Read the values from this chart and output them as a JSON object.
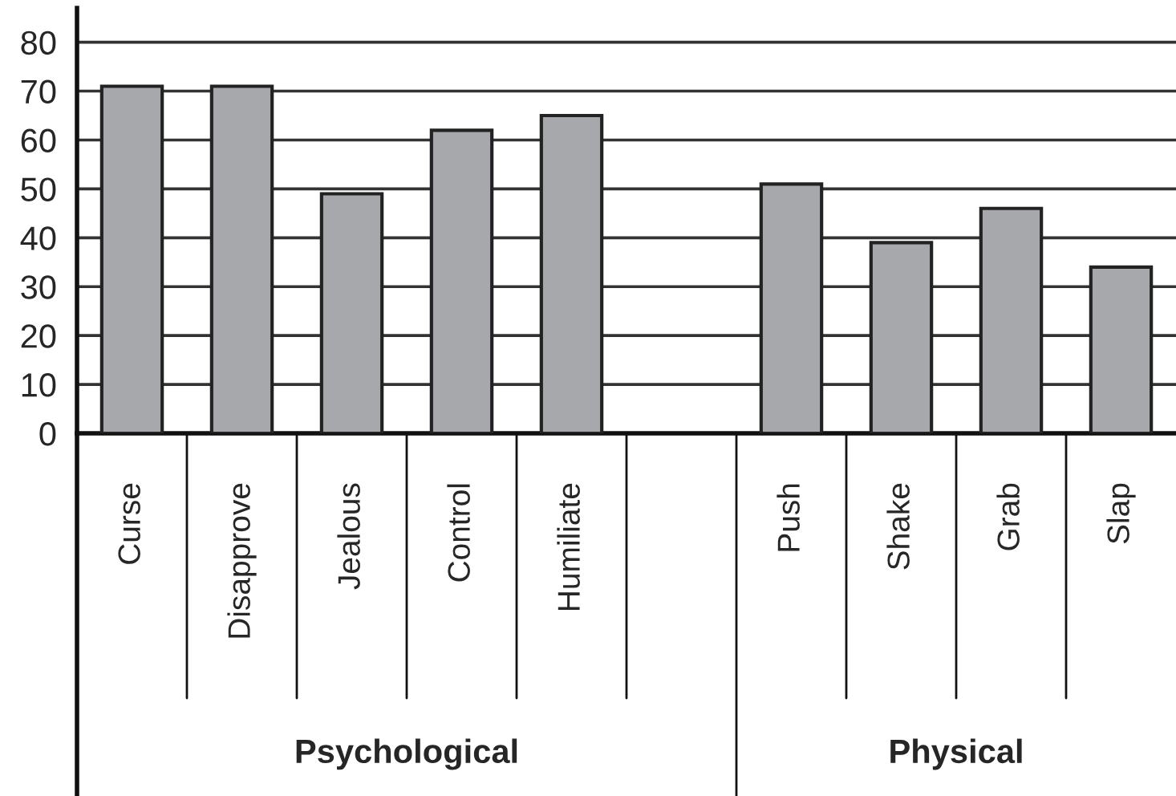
{
  "chart_data": {
    "type": "bar",
    "categories": [
      "Curse",
      "Disapprove",
      "Jealous",
      "Control",
      "Humiliate",
      null,
      "Push",
      "Shake",
      "Grab",
      "Slap"
    ],
    "values": [
      71,
      71,
      49,
      62,
      65,
      null,
      51,
      39,
      46,
      34
    ],
    "color": "#a7a8ab",
    "ylim": [
      0,
      87
    ],
    "yticks": [
      0,
      10,
      20,
      30,
      40,
      50,
      60,
      70,
      80
    ],
    "grid": "y",
    "annotations": [
      "Psychological",
      "Physical"
    ]
  }
}
